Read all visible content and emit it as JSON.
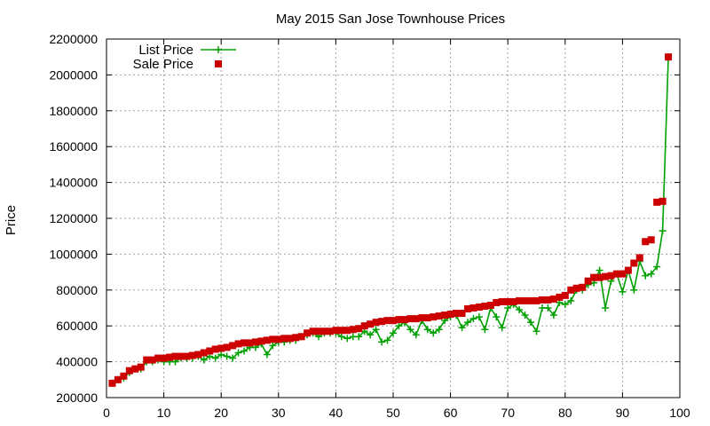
{
  "chart_data": {
    "type": "line",
    "title": "May 2015 San Jose Townhouse Prices",
    "xlabel": "",
    "ylabel": "Price",
    "xlim": [
      0,
      100
    ],
    "ylim": [
      200000,
      2200000
    ],
    "xticks": [
      0,
      10,
      20,
      30,
      40,
      50,
      60,
      70,
      80,
      90,
      100
    ],
    "yticks": [
      200000,
      400000,
      600000,
      800000,
      1000000,
      1200000,
      1400000,
      1600000,
      1800000,
      2000000,
      2200000
    ],
    "grid": true,
    "legend_position": "top-left",
    "series": [
      {
        "name": "List Price",
        "style": "line-with-plus-markers",
        "color": "#00a000",
        "x": [
          1,
          2,
          3,
          4,
          5,
          6,
          7,
          8,
          9,
          10,
          11,
          12,
          13,
          14,
          15,
          16,
          17,
          18,
          19,
          20,
          21,
          22,
          23,
          24,
          25,
          26,
          27,
          28,
          29,
          30,
          31,
          32,
          33,
          34,
          35,
          36,
          37,
          38,
          39,
          40,
          41,
          42,
          43,
          44,
          45,
          46,
          47,
          48,
          49,
          50,
          51,
          52,
          53,
          54,
          55,
          56,
          57,
          58,
          59,
          60,
          61,
          62,
          63,
          64,
          65,
          66,
          67,
          68,
          69,
          70,
          71,
          72,
          73,
          74,
          75,
          76,
          77,
          78,
          79,
          80,
          81,
          82,
          83,
          84,
          85,
          86,
          87,
          88,
          89,
          90,
          91,
          92,
          93,
          94,
          95,
          96,
          97,
          98
        ],
        "y": [
          280000,
          300000,
          310000,
          340000,
          360000,
          360000,
          400000,
          400000,
          410000,
          400000,
          400000,
          400000,
          420000,
          420000,
          420000,
          430000,
          410000,
          430000,
          420000,
          440000,
          430000,
          420000,
          450000,
          460000,
          480000,
          480000,
          500000,
          440000,
          490000,
          510000,
          510000,
          520000,
          520000,
          540000,
          550000,
          560000,
          540000,
          560000,
          560000,
          560000,
          540000,
          530000,
          540000,
          540000,
          570000,
          550000,
          580000,
          510000,
          520000,
          560000,
          600000,
          620000,
          580000,
          550000,
          630000,
          580000,
          560000,
          580000,
          630000,
          650000,
          660000,
          590000,
          620000,
          640000,
          650000,
          580000,
          700000,
          650000,
          590000,
          700000,
          720000,
          690000,
          660000,
          620000,
          570000,
          700000,
          700000,
          660000,
          730000,
          720000,
          740000,
          800000,
          800000,
          830000,
          840000,
          910000,
          700000,
          850000,
          890000,
          790000,
          910000,
          800000,
          960000,
          880000,
          890000,
          930000,
          1130000,
          2100000
        ]
      },
      {
        "name": "Sale Price",
        "style": "square-markers",
        "color": "#cc0000",
        "x": [
          1,
          2,
          3,
          4,
          5,
          6,
          7,
          8,
          9,
          10,
          11,
          12,
          13,
          14,
          15,
          16,
          17,
          18,
          19,
          20,
          21,
          22,
          23,
          24,
          25,
          26,
          27,
          28,
          29,
          30,
          31,
          32,
          33,
          34,
          35,
          36,
          37,
          38,
          39,
          40,
          41,
          42,
          43,
          44,
          45,
          46,
          47,
          48,
          49,
          50,
          51,
          52,
          53,
          54,
          55,
          56,
          57,
          58,
          59,
          60,
          61,
          62,
          63,
          64,
          65,
          66,
          67,
          68,
          69,
          70,
          71,
          72,
          73,
          74,
          75,
          76,
          77,
          78,
          79,
          80,
          81,
          82,
          83,
          84,
          85,
          86,
          87,
          88,
          89,
          90,
          91,
          92,
          93,
          94,
          95,
          96,
          97,
          98
        ],
        "y": [
          280000,
          300000,
          320000,
          350000,
          360000,
          370000,
          410000,
          410000,
          420000,
          420000,
          425000,
          430000,
          430000,
          430000,
          435000,
          440000,
          450000,
          460000,
          470000,
          475000,
          480000,
          490000,
          500000,
          505000,
          505000,
          510000,
          515000,
          520000,
          525000,
          525000,
          530000,
          530000,
          535000,
          540000,
          560000,
          570000,
          570000,
          570000,
          570000,
          575000,
          575000,
          575000,
          580000,
          585000,
          600000,
          610000,
          620000,
          625000,
          630000,
          630000,
          635000,
          635000,
          640000,
          640000,
          645000,
          645000,
          650000,
          655000,
          660000,
          665000,
          670000,
          670000,
          695000,
          700000,
          705000,
          710000,
          715000,
          730000,
          735000,
          735000,
          735000,
          740000,
          740000,
          740000,
          740000,
          745000,
          745000,
          750000,
          760000,
          770000,
          800000,
          810000,
          815000,
          850000,
          870000,
          870000,
          875000,
          880000,
          890000,
          890000,
          910000,
          950000,
          980000,
          1070000,
          1080000,
          1290000,
          1295000,
          2100000
        ]
      }
    ]
  }
}
